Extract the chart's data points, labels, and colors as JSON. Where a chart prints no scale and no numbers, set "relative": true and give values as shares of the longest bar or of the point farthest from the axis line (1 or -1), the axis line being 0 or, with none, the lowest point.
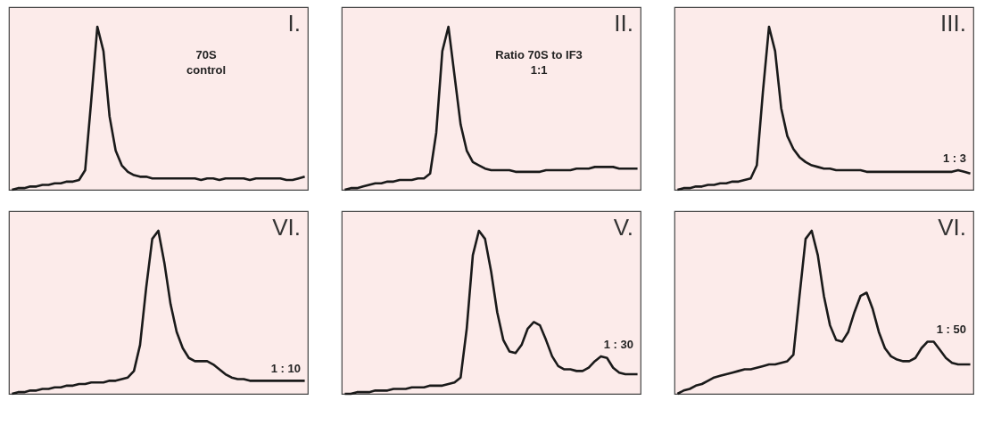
{
  "chart_data": [
    {
      "type": "line",
      "relative": true,
      "title": "I.",
      "annotations": [
        "70S\ncontrol"
      ],
      "categories": [
        null,
        null,
        null,
        null,
        null,
        null,
        null,
        null,
        null,
        null,
        null,
        null,
        null,
        null,
        null,
        null,
        null,
        null,
        null,
        null,
        null,
        null,
        null,
        null,
        null,
        null,
        null,
        null,
        null,
        null,
        null,
        null,
        null,
        null,
        null,
        null,
        null,
        null,
        null,
        null,
        null,
        null,
        null,
        null,
        null,
        null,
        null,
        null,
        null
      ],
      "series": [
        {
          "color": "#1a1a1a",
          "values": [
            0,
            0.01,
            0.01,
            0.02,
            0.02,
            0.03,
            0.03,
            0.04,
            0.04,
            0.05,
            0.05,
            0.06,
            0.12,
            0.55,
            1.0,
            0.85,
            0.45,
            0.24,
            0.15,
            0.11,
            0.09,
            0.08,
            0.08,
            0.07,
            0.07,
            0.07,
            0.07,
            0.07,
            0.07,
            0.07,
            0.07,
            0.06,
            0.07,
            0.07,
            0.06,
            0.07,
            0.07,
            0.07,
            0.07,
            0.06,
            0.07,
            0.07,
            0.07,
            0.07,
            0.07,
            0.06,
            0.06,
            0.07,
            0.08
          ]
        }
      ]
    },
    {
      "type": "line",
      "relative": true,
      "title": "II.",
      "annotations": [
        "Ratio 70S to IF3\n1:1"
      ],
      "categories": [
        null,
        null,
        null,
        null,
        null,
        null,
        null,
        null,
        null,
        null,
        null,
        null,
        null,
        null,
        null,
        null,
        null,
        null,
        null,
        null,
        null,
        null,
        null,
        null,
        null,
        null,
        null,
        null,
        null,
        null,
        null,
        null,
        null,
        null,
        null,
        null,
        null,
        null,
        null,
        null,
        null,
        null,
        null,
        null,
        null,
        null,
        null,
        null,
        null
      ],
      "series": [
        {
          "color": "#1a1a1a",
          "values": [
            0,
            0.01,
            0.01,
            0.02,
            0.03,
            0.04,
            0.04,
            0.05,
            0.05,
            0.06,
            0.06,
            0.06,
            0.07,
            0.07,
            0.1,
            0.35,
            0.85,
            1.0,
            0.7,
            0.4,
            0.24,
            0.17,
            0.15,
            0.13,
            0.12,
            0.12,
            0.12,
            0.12,
            0.11,
            0.11,
            0.11,
            0.11,
            0.11,
            0.12,
            0.12,
            0.12,
            0.12,
            0.12,
            0.13,
            0.13,
            0.13,
            0.14,
            0.14,
            0.14,
            0.14,
            0.13,
            0.13,
            0.13,
            0.13
          ]
        }
      ]
    },
    {
      "type": "line",
      "relative": true,
      "title": "III.",
      "annotations": [
        "1 : 3"
      ],
      "categories": [
        null,
        null,
        null,
        null,
        null,
        null,
        null,
        null,
        null,
        null,
        null,
        null,
        null,
        null,
        null,
        null,
        null,
        null,
        null,
        null,
        null,
        null,
        null,
        null,
        null,
        null,
        null,
        null,
        null,
        null,
        null,
        null,
        null,
        null,
        null,
        null,
        null,
        null,
        null,
        null,
        null,
        null,
        null,
        null,
        null,
        null,
        null,
        null,
        null
      ],
      "series": [
        {
          "color": "#1a1a1a",
          "values": [
            0,
            0.01,
            0.01,
            0.02,
            0.02,
            0.03,
            0.03,
            0.04,
            0.04,
            0.05,
            0.05,
            0.06,
            0.07,
            0.15,
            0.6,
            1.0,
            0.85,
            0.5,
            0.33,
            0.25,
            0.2,
            0.17,
            0.15,
            0.14,
            0.13,
            0.13,
            0.12,
            0.12,
            0.12,
            0.12,
            0.12,
            0.11,
            0.11,
            0.11,
            0.11,
            0.11,
            0.11,
            0.11,
            0.11,
            0.11,
            0.11,
            0.11,
            0.11,
            0.11,
            0.11,
            0.11,
            0.12,
            0.11,
            0.1
          ]
        }
      ]
    },
    {
      "type": "line",
      "relative": true,
      "title": "VI.",
      "annotations": [
        "1 : 10"
      ],
      "categories": [
        null,
        null,
        null,
        null,
        null,
        null,
        null,
        null,
        null,
        null,
        null,
        null,
        null,
        null,
        null,
        null,
        null,
        null,
        null,
        null,
        null,
        null,
        null,
        null,
        null,
        null,
        null,
        null,
        null,
        null,
        null,
        null,
        null,
        null,
        null,
        null,
        null,
        null,
        null,
        null,
        null,
        null,
        null,
        null,
        null,
        null,
        null,
        null,
        null
      ],
      "series": [
        {
          "color": "#1a1a1a",
          "values": [
            0,
            0.01,
            0.01,
            0.02,
            0.02,
            0.03,
            0.03,
            0.04,
            0.04,
            0.05,
            0.05,
            0.06,
            0.06,
            0.07,
            0.07,
            0.07,
            0.08,
            0.08,
            0.09,
            0.1,
            0.14,
            0.3,
            0.65,
            0.95,
            1.0,
            0.8,
            0.55,
            0.38,
            0.28,
            0.22,
            0.2,
            0.2,
            0.2,
            0.18,
            0.15,
            0.12,
            0.1,
            0.09,
            0.09,
            0.08,
            0.08,
            0.08,
            0.08,
            0.08,
            0.08,
            0.08,
            0.08,
            0.08,
            0.08
          ]
        }
      ]
    },
    {
      "type": "line",
      "relative": true,
      "title": "V.",
      "annotations": [
        "1 : 30"
      ],
      "categories": [
        null,
        null,
        null,
        null,
        null,
        null,
        null,
        null,
        null,
        null,
        null,
        null,
        null,
        null,
        null,
        null,
        null,
        null,
        null,
        null,
        null,
        null,
        null,
        null,
        null,
        null,
        null,
        null,
        null,
        null,
        null,
        null,
        null,
        null,
        null,
        null,
        null,
        null,
        null,
        null,
        null,
        null,
        null,
        null,
        null,
        null,
        null,
        null,
        null
      ],
      "series": [
        {
          "color": "#1a1a1a",
          "values": [
            0,
            0,
            0.01,
            0.01,
            0.01,
            0.02,
            0.02,
            0.02,
            0.03,
            0.03,
            0.03,
            0.04,
            0.04,
            0.04,
            0.05,
            0.05,
            0.05,
            0.06,
            0.07,
            0.1,
            0.4,
            0.85,
            1.0,
            0.95,
            0.75,
            0.5,
            0.33,
            0.26,
            0.25,
            0.3,
            0.4,
            0.44,
            0.42,
            0.33,
            0.23,
            0.17,
            0.15,
            0.15,
            0.14,
            0.14,
            0.16,
            0.2,
            0.23,
            0.22,
            0.16,
            0.13,
            0.12,
            0.12,
            0.12
          ]
        }
      ]
    },
    {
      "type": "line",
      "relative": true,
      "title": "VI.",
      "annotations": [
        "1 : 50"
      ],
      "categories": [
        null,
        null,
        null,
        null,
        null,
        null,
        null,
        null,
        null,
        null,
        null,
        null,
        null,
        null,
        null,
        null,
        null,
        null,
        null,
        null,
        null,
        null,
        null,
        null,
        null,
        null,
        null,
        null,
        null,
        null,
        null,
        null,
        null,
        null,
        null,
        null,
        null,
        null,
        null,
        null,
        null,
        null,
        null,
        null,
        null,
        null,
        null,
        null,
        null
      ],
      "series": [
        {
          "color": "#1a1a1a",
          "values": [
            0,
            0.02,
            0.03,
            0.05,
            0.06,
            0.08,
            0.1,
            0.11,
            0.12,
            0.13,
            0.14,
            0.15,
            0.15,
            0.16,
            0.17,
            0.18,
            0.18,
            0.19,
            0.2,
            0.24,
            0.6,
            0.95,
            1.0,
            0.85,
            0.6,
            0.42,
            0.33,
            0.32,
            0.38,
            0.5,
            0.6,
            0.62,
            0.52,
            0.38,
            0.28,
            0.23,
            0.21,
            0.2,
            0.2,
            0.22,
            0.28,
            0.32,
            0.32,
            0.27,
            0.22,
            0.19,
            0.18,
            0.18,
            0.18
          ]
        }
      ]
    }
  ]
}
